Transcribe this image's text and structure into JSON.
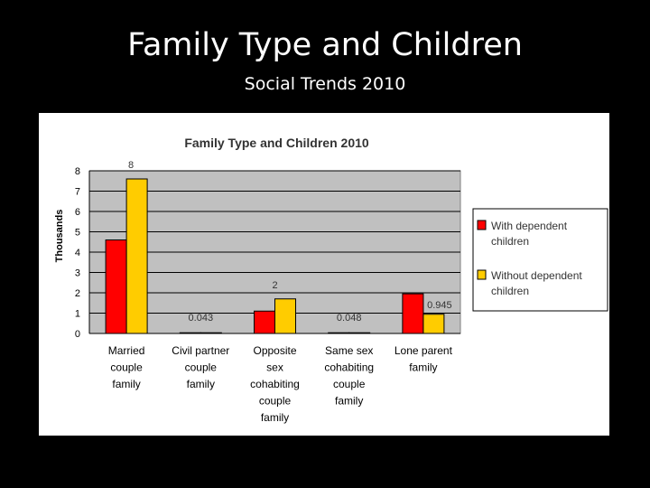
{
  "slide": {
    "title": "Family Type and Children",
    "subtitle": "Social Trends 2010"
  },
  "colors": {
    "background": "#000000",
    "plot_area": "#c0c0c0",
    "series_with": "#ff0000",
    "series_without": "#ffcc00"
  },
  "chart_data": {
    "type": "bar",
    "title": "Family Type and Children 2010",
    "xlabel": "",
    "ylabel": "Thousands",
    "ylim": [
      0,
      8
    ],
    "yticks": [
      0,
      1,
      2,
      3,
      4,
      5,
      6,
      7,
      8
    ],
    "grid": true,
    "legend_position": "right",
    "categories": [
      [
        "Married",
        "couple",
        "family"
      ],
      [
        "Civil partner",
        "couple",
        "family"
      ],
      [
        "Opposite",
        "sex",
        "cohabiting",
        "couple",
        "family"
      ],
      [
        "Same sex",
        "cohabiting",
        "couple",
        "family"
      ],
      [
        "Lone parent",
        "family"
      ]
    ],
    "series": [
      {
        "name": "With dependent children",
        "legend_lines": [
          "With dependent",
          "children"
        ],
        "color": "#ff0000",
        "values": [
          4.6,
          0.02,
          1.1,
          0.02,
          1.95
        ]
      },
      {
        "name": "Without dependent children",
        "legend_lines": [
          "Without dependent",
          "children"
        ],
        "color": "#ffcc00",
        "values": [
          7.6,
          0.023,
          1.7,
          0.028,
          0.945
        ]
      }
    ],
    "annotations": [
      {
        "text": "8",
        "category": 0
      },
      {
        "text": "0.043",
        "category": 1
      },
      {
        "text": "2",
        "category": 2
      },
      {
        "text": "0.048",
        "category": 3
      },
      {
        "text": "0.945",
        "category": 4
      }
    ]
  }
}
